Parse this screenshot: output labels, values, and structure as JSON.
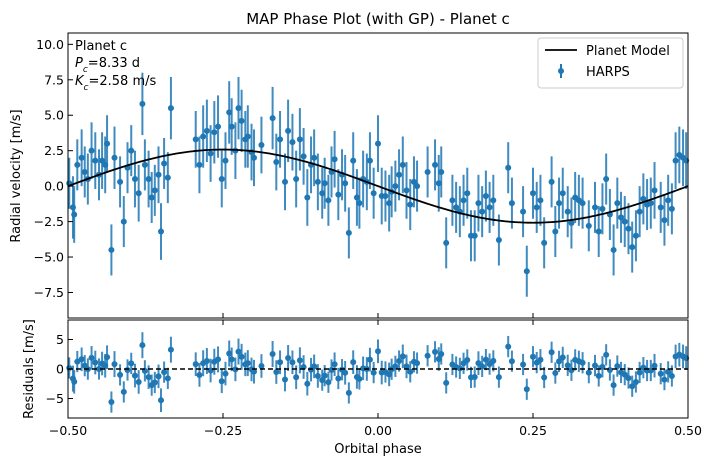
{
  "chart_data": {
    "type": "scatter",
    "title": "MAP Phase Plot (with GP) - Planet c",
    "xlabel": "Orbital phase",
    "xlim": [
      -0.5,
      0.5
    ],
    "xticks": [
      "−0.50",
      "−0.25",
      "0.00",
      "0.25",
      "0.50"
    ],
    "top_panel": {
      "ylabel": "Radial velocity [m/s]",
      "ylim": [
        -9.3,
        10.8
      ],
      "yticks": [
        "−7.5",
        "−5.0",
        "−2.5",
        "0.0",
        "2.5",
        "5.0",
        "7.5",
        "10.0"
      ],
      "annotation": [
        "Planet c",
        "P_c=8.33 d",
        "K_c=2.58 m/s"
      ],
      "model": {
        "name": "Planet Model",
        "shape": "sine",
        "amplitude": 2.58,
        "color": "#000000"
      }
    },
    "bottom_panel": {
      "ylabel": "Residuals [m/s]",
      "ylim": [
        -8.3,
        8.3
      ],
      "yticks": [
        "−5",
        "0",
        "5"
      ],
      "zero_line": "dashed"
    },
    "legend": {
      "position": "top-right",
      "model_label": "Planet Model",
      "data_label": "HARPS"
    },
    "series": [
      {
        "name": "HARPS",
        "color": "#1f77b4",
        "points": [
          [
            -0.498,
            0.2,
            1.8
          ],
          [
            -0.492,
            -1.5,
            2.2
          ],
          [
            -0.49,
            -2.0,
            2.0
          ],
          [
            -0.485,
            1.5,
            1.8
          ],
          [
            -0.478,
            2.0,
            2.0
          ],
          [
            -0.473,
            1.0,
            1.8
          ],
          [
            -0.468,
            0.5,
            1.8
          ],
          [
            -0.462,
            2.5,
            2.0
          ],
          [
            -0.456,
            1.8,
            2.0
          ],
          [
            -0.45,
            0.8,
            1.8
          ],
          [
            -0.445,
            1.8,
            2.0
          ],
          [
            -0.44,
            1.5,
            2.0
          ],
          [
            -0.437,
            3.0,
            2.0
          ],
          [
            -0.43,
            -4.5,
            1.8
          ],
          [
            -0.425,
            2.0,
            2.2
          ],
          [
            -0.416,
            0.3,
            1.8
          ],
          [
            -0.41,
            -2.5,
            1.8
          ],
          [
            -0.404,
            1.3,
            1.8
          ],
          [
            -0.398,
            2.5,
            1.8
          ],
          [
            -0.392,
            0.5,
            2.0
          ],
          [
            -0.386,
            -0.5,
            2.0
          ],
          [
            -0.38,
            5.8,
            2.2
          ],
          [
            -0.376,
            1.5,
            1.8
          ],
          [
            -0.37,
            0.5,
            2.0
          ],
          [
            -0.365,
            -0.8,
            1.8
          ],
          [
            -0.36,
            -0.3,
            1.8
          ],
          [
            -0.354,
            0.8,
            2.0
          ],
          [
            -0.35,
            -3.2,
            2.0
          ],
          [
            -0.345,
            1.6,
            1.8
          ],
          [
            -0.339,
            0.6,
            1.8
          ],
          [
            -0.334,
            5.5,
            2.2
          ],
          [
            -0.294,
            3.3,
            2.0
          ],
          [
            -0.288,
            1.5,
            2.0
          ],
          [
            -0.282,
            3.5,
            2.2
          ],
          [
            -0.276,
            3.9,
            2.2
          ],
          [
            -0.27,
            2.3,
            2.0
          ],
          [
            -0.264,
            3.8,
            2.2
          ],
          [
            -0.258,
            4.2,
            2.2
          ],
          [
            -0.252,
            0.5,
            2.0
          ],
          [
            -0.246,
            1.8,
            2.0
          ],
          [
            -0.24,
            5.2,
            2.2
          ],
          [
            -0.236,
            4.2,
            2.0
          ],
          [
            -0.23,
            2.5,
            2.0
          ],
          [
            -0.225,
            5.5,
            2.2
          ],
          [
            -0.22,
            4.6,
            2.2
          ],
          [
            -0.214,
            3.3,
            2.0
          ],
          [
            -0.21,
            3.5,
            2.2
          ],
          [
            -0.204,
            2.4,
            2.0
          ],
          [
            -0.2,
            2.0,
            2.0
          ],
          [
            -0.188,
            2.9,
            2.0
          ],
          [
            -0.17,
            4.8,
            2.2
          ],
          [
            -0.164,
            1.7,
            2.0
          ],
          [
            -0.158,
            3.3,
            2.0
          ],
          [
            -0.15,
            0.3,
            2.0
          ],
          [
            -0.145,
            3.9,
            2.2
          ],
          [
            -0.138,
            3.1,
            2.0
          ],
          [
            -0.132,
            0.5,
            2.0
          ],
          [
            -0.126,
            3.3,
            2.2
          ],
          [
            -0.12,
            2.1,
            2.0
          ],
          [
            -0.114,
            -0.8,
            2.0
          ],
          [
            -0.108,
            1.5,
            2.0
          ],
          [
            -0.103,
            2.0,
            2.0
          ],
          [
            -0.097,
            0.3,
            2.0
          ],
          [
            -0.09,
            -0.5,
            1.8
          ],
          [
            -0.086,
            0.2,
            1.8
          ],
          [
            -0.08,
            -1.0,
            1.8
          ],
          [
            -0.075,
            1.0,
            1.8
          ],
          [
            -0.07,
            1.9,
            2.0
          ],
          [
            -0.064,
            -0.6,
            1.8
          ],
          [
            -0.058,
            0.8,
            1.8
          ],
          [
            -0.053,
            0.2,
            2.0
          ],
          [
            -0.047,
            -3.3,
            1.8
          ],
          [
            -0.04,
            1.8,
            2.0
          ],
          [
            -0.034,
            -0.8,
            2.0
          ],
          [
            -0.03,
            -1.2,
            1.8
          ],
          [
            -0.024,
            0.5,
            2.0
          ],
          [
            -0.018,
            0.3,
            2.0
          ],
          [
            -0.013,
            1.8,
            2.0
          ],
          [
            -0.007,
            -0.5,
            1.8
          ],
          [
            0.0,
            3.0,
            2.0
          ],
          [
            0.006,
            -0.7,
            2.0
          ],
          [
            0.012,
            -0.7,
            1.8
          ],
          [
            0.018,
            -1.2,
            2.0
          ],
          [
            0.022,
            -0.4,
            1.8
          ],
          [
            0.028,
            0.0,
            1.8
          ],
          [
            0.034,
            0.8,
            1.8
          ],
          [
            0.04,
            1.5,
            2.0
          ],
          [
            0.046,
            -0.3,
            2.0
          ],
          [
            0.052,
            -1.3,
            1.8
          ],
          [
            0.058,
            0.3,
            1.8
          ],
          [
            0.063,
            0.0,
            1.8
          ],
          [
            0.08,
            1.0,
            1.8
          ],
          [
            0.092,
            1.5,
            1.8
          ],
          [
            0.098,
            0.2,
            2.0
          ],
          [
            0.102,
            1.0,
            1.8
          ],
          [
            0.11,
            -4.0,
            1.8
          ],
          [
            0.12,
            -1.0,
            1.8
          ],
          [
            0.126,
            -1.5,
            1.8
          ],
          [
            0.132,
            -1.8,
            1.8
          ],
          [
            0.138,
            -1.0,
            1.8
          ],
          [
            0.144,
            -0.5,
            1.8
          ],
          [
            0.15,
            -3.5,
            1.8
          ],
          [
            0.156,
            -3.5,
            1.8
          ],
          [
            0.162,
            -1.2,
            2.0
          ],
          [
            0.168,
            -1.8,
            1.8
          ],
          [
            0.174,
            -0.7,
            1.8
          ],
          [
            0.18,
            -1.5,
            1.8
          ],
          [
            0.186,
            -1.0,
            1.8
          ],
          [
            0.195,
            -3.8,
            1.8
          ],
          [
            0.21,
            1.3,
            1.8
          ],
          [
            0.216,
            -1.2,
            1.8
          ],
          [
            0.234,
            -1.8,
            1.8
          ],
          [
            0.24,
            -6.0,
            1.8
          ],
          [
            0.25,
            -0.5,
            1.8
          ],
          [
            0.256,
            -1.5,
            1.8
          ],
          [
            0.262,
            -1.0,
            1.8
          ],
          [
            0.268,
            -4.0,
            1.8
          ],
          [
            0.28,
            0.3,
            1.8
          ],
          [
            0.286,
            -3.2,
            1.8
          ],
          [
            0.292,
            -1.2,
            1.8
          ],
          [
            0.298,
            -0.5,
            1.8
          ],
          [
            0.306,
            -1.8,
            1.8
          ],
          [
            0.312,
            -2.6,
            1.8
          ],
          [
            0.318,
            -0.8,
            1.8
          ],
          [
            0.324,
            -1.0,
            1.8
          ],
          [
            0.33,
            -1.2,
            1.8
          ],
          [
            0.34,
            -2.8,
            1.8
          ],
          [
            0.35,
            -1.5,
            1.8
          ],
          [
            0.356,
            -3.2,
            1.8
          ],
          [
            0.362,
            -1.6,
            1.8
          ],
          [
            0.368,
            0.5,
            1.8
          ],
          [
            0.374,
            -2.0,
            1.8
          ],
          [
            0.38,
            -4.5,
            1.8
          ],
          [
            0.386,
            -1.2,
            1.8
          ],
          [
            0.392,
            -2.2,
            1.8
          ],
          [
            0.398,
            -2.5,
            1.8
          ],
          [
            0.404,
            -3.0,
            1.8
          ],
          [
            0.41,
            -4.3,
            1.8
          ],
          [
            0.416,
            -3.5,
            1.8
          ],
          [
            0.422,
            -1.8,
            1.8
          ],
          [
            0.428,
            -0.9,
            1.8
          ],
          [
            0.434,
            -1.3,
            1.8
          ],
          [
            0.44,
            -1.2,
            1.8
          ],
          [
            0.446,
            -0.3,
            2.0
          ],
          [
            0.456,
            -1.5,
            1.8
          ],
          [
            0.462,
            -2.4,
            1.8
          ],
          [
            0.468,
            -1.0,
            1.8
          ],
          [
            0.474,
            -1.6,
            1.8
          ],
          [
            0.48,
            1.8,
            2.0
          ],
          [
            0.486,
            2.2,
            2.0
          ],
          [
            0.492,
            2.0,
            2.0
          ],
          [
            0.497,
            1.8,
            2.0
          ]
        ]
      }
    ]
  }
}
